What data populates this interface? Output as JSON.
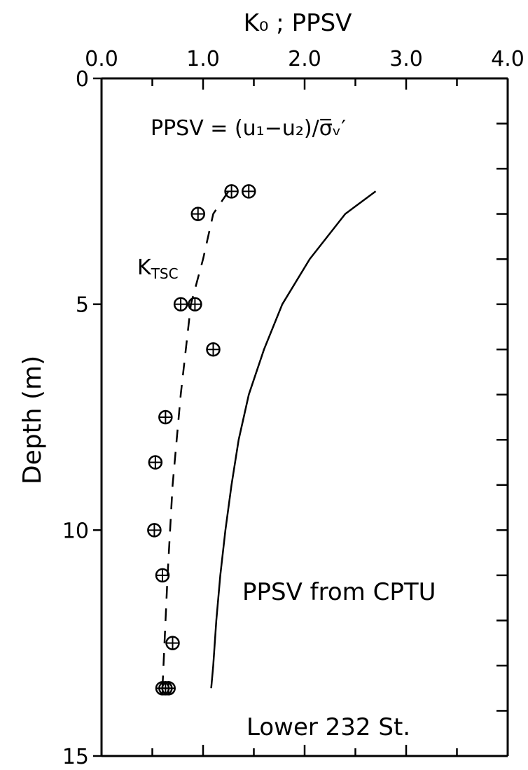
{
  "chart_data": {
    "type": "scatter",
    "x_axis": {
      "label": "K₀ ; PPSV",
      "position": "top",
      "range": [
        0.0,
        4.0
      ],
      "tick_labels": [
        "0.0",
        "1.0",
        "2.0",
        "3.0",
        "4.0"
      ],
      "minor_step": 0.5
    },
    "y_axis": {
      "label": "Depth (m)",
      "range": [
        0,
        15
      ],
      "inverted": true,
      "tick_labels": [
        "0",
        "5",
        "10",
        "15"
      ],
      "minor_step": 1
    },
    "grid": false,
    "annotations": {
      "formula": "PPSV = (u₁−u₂)/σ̅ᵥ′",
      "k_label": "K",
      "k_subscript": "TSC",
      "curve_label": "PPSV from CPTU",
      "site_label": "Lower 232 St."
    },
    "series": [
      {
        "style": "markers-crossed-circle",
        "points": [
          {
            "x": 1.28,
            "y": 2.5
          },
          {
            "x": 1.45,
            "y": 2.5
          },
          {
            "x": 0.95,
            "y": 3.0
          },
          {
            "x": 0.78,
            "y": 5.0
          },
          {
            "x": 0.92,
            "y": 5.0
          },
          {
            "x": 1.1,
            "y": 6.0
          },
          {
            "x": 0.63,
            "y": 7.5
          },
          {
            "x": 0.53,
            "y": 8.5
          },
          {
            "x": 0.52,
            "y": 10.0
          },
          {
            "x": 0.6,
            "y": 11.0
          },
          {
            "x": 0.7,
            "y": 12.5
          },
          {
            "x": 0.6,
            "y": 13.5
          },
          {
            "x": 0.63,
            "y": 13.5
          },
          {
            "x": 0.66,
            "y": 13.5
          }
        ]
      },
      {
        "style": "dashed-line",
        "points": [
          {
            "x": 1.25,
            "y": 2.5
          },
          {
            "x": 1.1,
            "y": 3.0
          },
          {
            "x": 1.0,
            "y": 4.0
          },
          {
            "x": 0.88,
            "y": 5.0
          },
          {
            "x": 0.78,
            "y": 7.0
          },
          {
            "x": 0.7,
            "y": 9.0
          },
          {
            "x": 0.65,
            "y": 11.0
          },
          {
            "x": 0.6,
            "y": 13.5
          }
        ]
      },
      {
        "style": "solid-line",
        "points": [
          {
            "x": 2.7,
            "y": 2.5
          },
          {
            "x": 2.4,
            "y": 3.0
          },
          {
            "x": 2.05,
            "y": 4.0
          },
          {
            "x": 1.78,
            "y": 5.0
          },
          {
            "x": 1.6,
            "y": 6.0
          },
          {
            "x": 1.45,
            "y": 7.0
          },
          {
            "x": 1.35,
            "y": 8.0
          },
          {
            "x": 1.28,
            "y": 9.0
          },
          {
            "x": 1.22,
            "y": 10.0
          },
          {
            "x": 1.17,
            "y": 11.0
          },
          {
            "x": 1.13,
            "y": 12.0
          },
          {
            "x": 1.1,
            "y": 13.0
          },
          {
            "x": 1.08,
            "y": 13.5
          }
        ]
      }
    ]
  }
}
